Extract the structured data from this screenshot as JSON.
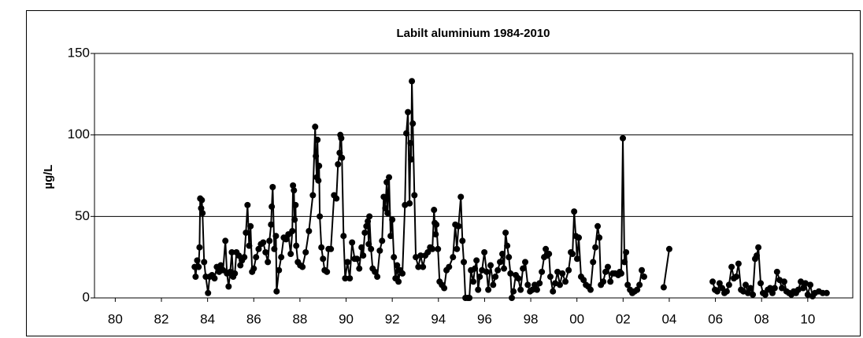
{
  "chart_data": {
    "type": "line",
    "title": "Labilt aluminium 1984-2010",
    "y_label": "µg/L",
    "color": "#000000",
    "grid": true,
    "xlim": [
      1979.1,
      2011.95
    ],
    "ylim": [
      0,
      150
    ],
    "xticks": [
      {
        "value": 1980,
        "label": "80"
      },
      {
        "value": 1982,
        "label": "82"
      },
      {
        "value": 1984,
        "label": "84"
      },
      {
        "value": 1986,
        "label": "86"
      },
      {
        "value": 1988,
        "label": "88"
      },
      {
        "value": 1990,
        "label": "90"
      },
      {
        "value": 1992,
        "label": "92"
      },
      {
        "value": 1994,
        "label": "94"
      },
      {
        "value": 1996,
        "label": "96"
      },
      {
        "value": 1998,
        "label": "98"
      },
      {
        "value": 2000,
        "label": "00"
      },
      {
        "value": 2002,
        "label": "02"
      },
      {
        "value": 2004,
        "label": "04"
      },
      {
        "value": 2006,
        "label": "06"
      },
      {
        "value": 2008,
        "label": "08"
      },
      {
        "value": 2010,
        "label": "10"
      }
    ],
    "yticks": [
      0,
      50,
      100,
      150
    ],
    "x": [
      1983.44,
      1983.48,
      1983.55,
      1983.61,
      1983.65,
      1983.68,
      1983.72,
      1983.75,
      1983.78,
      1983.85,
      1983.92,
      1984.02,
      1984.09,
      1984.19,
      1984.3,
      1984.4,
      1984.5,
      1984.57,
      1984.67,
      1984.77,
      1984.84,
      1984.91,
      1984.98,
      1985.05,
      1985.11,
      1985.18,
      1985.25,
      1985.35,
      1985.42,
      1985.49,
      1985.59,
      1985.66,
      1985.73,
      1985.8,
      1985.86,
      1985.93,
      1986.0,
      1986.1,
      1986.21,
      1986.31,
      1986.41,
      1986.51,
      1986.61,
      1986.68,
      1986.75,
      1986.78,
      1986.82,
      1986.89,
      1986.96,
      1986.99,
      1987.09,
      1987.19,
      1987.3,
      1987.4,
      1987.5,
      1987.6,
      1987.67,
      1987.7,
      1987.74,
      1987.77,
      1987.81,
      1987.84,
      1987.91,
      1988.01,
      1988.11,
      1988.25,
      1988.39,
      1988.56,
      1988.66,
      1988.69,
      1988.73,
      1988.76,
      1988.8,
      1988.83,
      1988.86,
      1988.93,
      1989.0,
      1989.07,
      1989.17,
      1989.24,
      1989.34,
      1989.48,
      1989.58,
      1989.65,
      1989.72,
      1989.75,
      1989.79,
      1989.82,
      1989.89,
      1989.96,
      1990.06,
      1990.16,
      1990.26,
      1990.37,
      1990.47,
      1990.57,
      1990.67,
      1990.74,
      1990.81,
      1990.88,
      1990.94,
      1990.98,
      1991.01,
      1991.08,
      1991.15,
      1991.25,
      1991.35,
      1991.46,
      1991.56,
      1991.63,
      1991.7,
      1991.76,
      1991.8,
      1991.86,
      1991.93,
      1992.0,
      1992.07,
      1992.14,
      1992.21,
      1992.27,
      1992.34,
      1992.44,
      1992.55,
      1992.61,
      1992.68,
      1992.75,
      1992.79,
      1992.82,
      1992.85,
      1992.89,
      1992.96,
      1993.02,
      1993.13,
      1993.23,
      1993.33,
      1993.43,
      1993.54,
      1993.64,
      1993.74,
      1993.81,
      1993.84,
      1993.88,
      1993.91,
      1993.98,
      1994.05,
      1994.15,
      1994.25,
      1994.35,
      1994.46,
      1994.63,
      1994.73,
      1994.8,
      1994.87,
      1994.97,
      1995.04,
      1995.1,
      1995.17,
      1995.27,
      1995.34,
      1995.41,
      1995.51,
      1995.58,
      1995.65,
      1995.72,
      1995.79,
      1995.89,
      1995.99,
      1996.09,
      1996.16,
      1996.26,
      1996.37,
      1996.47,
      1996.57,
      1996.67,
      1996.77,
      1996.84,
      1996.91,
      1996.98,
      1997.05,
      1997.12,
      1997.18,
      1997.25,
      1997.35,
      1997.46,
      1997.56,
      1997.66,
      1997.76,
      1997.87,
      1997.97,
      1998.07,
      1998.17,
      1998.27,
      1998.38,
      1998.48,
      1998.58,
      1998.65,
      1998.72,
      1998.79,
      1998.85,
      1998.96,
      1999.06,
      1999.16,
      1999.26,
      1999.37,
      1999.5,
      1999.64,
      1999.74,
      1999.81,
      1999.88,
      1999.95,
      2000.01,
      2000.08,
      2000.18,
      2000.29,
      2000.39,
      2000.49,
      2000.59,
      2000.7,
      2000.8,
      2000.9,
      2000.97,
      2001.04,
      2001.14,
      2001.24,
      2001.34,
      2001.45,
      2001.55,
      2001.65,
      2001.79,
      2001.86,
      2001.92,
      2001.99,
      2002.06,
      2002.13,
      2002.2,
      2002.3,
      2002.4,
      2002.5,
      2002.61,
      2002.71,
      2002.81,
      2002.91,
      null,
      2003.76,
      2004.0,
      null,
      2005.88,
      2005.98,
      2006.08,
      2006.18,
      2006.29,
      2006.39,
      2006.49,
      2006.59,
      2006.7,
      2006.8,
      2006.9,
      2007.0,
      2007.11,
      2007.21,
      2007.31,
      2007.41,
      2007.52,
      2007.62,
      2007.72,
      2007.79,
      2007.86,
      2007.96,
      2008.06,
      2008.16,
      2008.27,
      2008.37,
      2008.47,
      2008.57,
      2008.67,
      2008.78,
      2008.88,
      2008.98,
      2009.08,
      2009.19,
      2009.29,
      2009.39,
      2009.49,
      2009.59,
      2009.7,
      2009.8,
      2009.9,
      2010.0,
      2010.11,
      2010.21,
      2010.31,
      2010.48,
      2010.65,
      2010.82
    ],
    "values": [
      19,
      13,
      23,
      19,
      31,
      61,
      55,
      60,
      52,
      22,
      13,
      3,
      13,
      14,
      12,
      19,
      16,
      20,
      17,
      35,
      15,
      7,
      16,
      28,
      13,
      15,
      28,
      26,
      20,
      23,
      25,
      40,
      57,
      32,
      44,
      16,
      18,
      25,
      30,
      33,
      34,
      28,
      22,
      35,
      45,
      56,
      68,
      30,
      38,
      4,
      17,
      25,
      37,
      36,
      39,
      27,
      41,
      69,
      66,
      48,
      57,
      32,
      22,
      20,
      19,
      28,
      41,
      63,
      105,
      87,
      74,
      97,
      72,
      81,
      50,
      31,
      24,
      17,
      16,
      30,
      30,
      63,
      61,
      82,
      89,
      100,
      98,
      86,
      38,
      12,
      22,
      12,
      34,
      24,
      24,
      18,
      31,
      26,
      40,
      44,
      47,
      33,
      50,
      30,
      18,
      16,
      13,
      29,
      35,
      62,
      55,
      71,
      52,
      74,
      38,
      48,
      25,
      12,
      20,
      10,
      17,
      15,
      57,
      101,
      114,
      58,
      95,
      85,
      133,
      107,
      63,
      25,
      19,
      26,
      19,
      26,
      28,
      31,
      30,
      54,
      46,
      39,
      45,
      30,
      10,
      8,
      6,
      17,
      19,
      25,
      45,
      30,
      44,
      62,
      35,
      22,
      0,
      0,
      0,
      17,
      10,
      18,
      23,
      5,
      13,
      17,
      28,
      16,
      5,
      20,
      8,
      13,
      17,
      22,
      27,
      18,
      40,
      32,
      25,
      15,
      0,
      4,
      14,
      12,
      5,
      18,
      22,
      8,
      4,
      5,
      8,
      5,
      9,
      16,
      25,
      30,
      26,
      27,
      13,
      4,
      9,
      16,
      8,
      15,
      10,
      17,
      28,
      27,
      53,
      38,
      24,
      37,
      13,
      11,
      8,
      7,
      5,
      22,
      31,
      44,
      37,
      8,
      10,
      16,
      19,
      10,
      15,
      15,
      14,
      16,
      15,
      98,
      22,
      28,
      8,
      5,
      3,
      4,
      5,
      8,
      17,
      13,
      null,
      6.5,
      30,
      null,
      10,
      5,
      4,
      9,
      6,
      3,
      4,
      8,
      19,
      12,
      13,
      21,
      5,
      4,
      8,
      3,
      6,
      2,
      24,
      26,
      31,
      9,
      3,
      2,
      5,
      6,
      3,
      6,
      16,
      11,
      6,
      10,
      4,
      3,
      2,
      4,
      3,
      5,
      10,
      6,
      9,
      2,
      8,
      1,
      3,
      4,
      3,
      3
    ]
  }
}
